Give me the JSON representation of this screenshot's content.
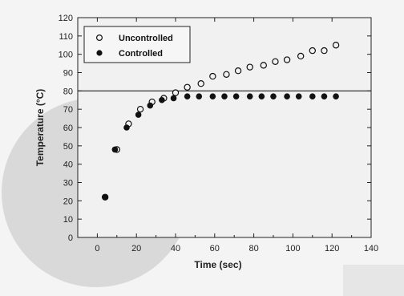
{
  "chart_data": {
    "type": "scatter",
    "title": "",
    "xlabel": "Time (sec)",
    "ylabel": "Temperature (°C)",
    "xlim": [
      -10,
      140
    ],
    "ylim": [
      0,
      120
    ],
    "xticks": [
      0,
      20,
      40,
      60,
      80,
      100,
      120,
      140
    ],
    "yticks": [
      0,
      10,
      20,
      30,
      40,
      50,
      60,
      70,
      80,
      90,
      100,
      110,
      120
    ],
    "reference_line": {
      "y": 80
    },
    "legend_position": "top-left",
    "grid": false,
    "series": [
      {
        "name": "Uncontrolled",
        "marker": "open-circle",
        "x": [
          4,
          10,
          16,
          22,
          28,
          34,
          40,
          46,
          53,
          59,
          66,
          72,
          78,
          85,
          91,
          97,
          104,
          110,
          116,
          122
        ],
        "y": [
          22,
          48,
          62,
          70,
          74,
          76,
          79,
          82,
          84,
          88,
          89,
          91,
          93,
          94,
          96,
          97,
          99,
          102,
          102,
          105
        ]
      },
      {
        "name": "Controlled",
        "marker": "filled-circle",
        "x": [
          4,
          9,
          15,
          21,
          27,
          33,
          39,
          46,
          52,
          59,
          65,
          71,
          78,
          84,
          90,
          97,
          103,
          110,
          116,
          122
        ],
        "y": [
          22,
          48,
          60,
          67,
          72,
          75,
          76,
          77,
          77,
          77,
          77,
          77,
          77,
          77,
          77,
          77,
          77,
          77,
          77,
          77
        ]
      }
    ]
  },
  "colors": {
    "background": "#f4f4f4",
    "plot_area": "#f1f1f1",
    "axis": "#222222",
    "marker": "#111111",
    "watermark": "#d9d9d9"
  }
}
